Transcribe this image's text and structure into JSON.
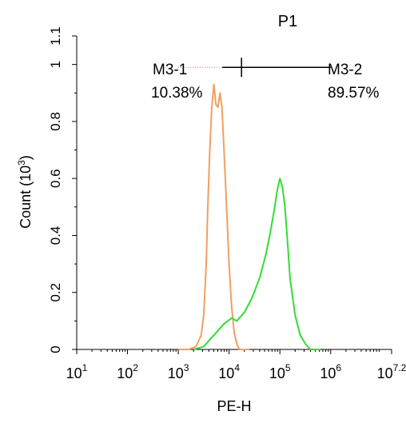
{
  "chart_data": {
    "type": "line",
    "title": "P1",
    "title_color": "#22cc22",
    "xlabel": "PE-H",
    "ylabel": "Count  (10",
    "ylabel_exp": "3",
    "ylabel_close": ")",
    "x_scale": "log",
    "xlim": [
      1,
      7.2
    ],
    "ylim": [
      0,
      1.1
    ],
    "x_ticks": [
      {
        "pos": 1,
        "base": "10",
        "exp": "1"
      },
      {
        "pos": 2,
        "base": "10",
        "exp": "2"
      },
      {
        "pos": 3,
        "base": "10",
        "exp": "3"
      },
      {
        "pos": 4,
        "base": "10",
        "exp": "4"
      },
      {
        "pos": 5,
        "base": "10",
        "exp": "5"
      },
      {
        "pos": 6,
        "base": "10",
        "exp": "6"
      },
      {
        "pos": 7.2,
        "base": "10",
        "exp": "7.2"
      }
    ],
    "y_ticks": [
      {
        "v": 0,
        "label": "0"
      },
      {
        "v": 0.2,
        "label": "0.2"
      },
      {
        "v": 0.4,
        "label": "0.4"
      },
      {
        "v": 0.6,
        "label": "0.6"
      },
      {
        "v": 0.8,
        "label": "0.8"
      },
      {
        "v": 1.0,
        "label": "1"
      },
      {
        "v": 1.1,
        "label": "1.1"
      }
    ],
    "series": [
      {
        "color": "#f0a060",
        "points": [
          [
            3.0,
            0
          ],
          [
            3.2,
            0
          ],
          [
            3.35,
            0.01
          ],
          [
            3.45,
            0.05
          ],
          [
            3.5,
            0.12
          ],
          [
            3.55,
            0.3
          ],
          [
            3.58,
            0.5
          ],
          [
            3.62,
            0.7
          ],
          [
            3.66,
            0.85
          ],
          [
            3.7,
            0.93
          ],
          [
            3.74,
            0.86
          ],
          [
            3.78,
            0.85
          ],
          [
            3.82,
            0.9
          ],
          [
            3.86,
            0.85
          ],
          [
            3.9,
            0.7
          ],
          [
            3.95,
            0.5
          ],
          [
            4.0,
            0.3
          ],
          [
            4.05,
            0.15
          ],
          [
            4.1,
            0.06
          ],
          [
            4.15,
            0.02
          ],
          [
            4.2,
            0
          ],
          [
            4.4,
            0
          ]
        ]
      },
      {
        "color": "#33dd33",
        "points": [
          [
            3.3,
            0
          ],
          [
            3.5,
            0.01
          ],
          [
            3.6,
            0.03
          ],
          [
            3.75,
            0.06
          ],
          [
            3.9,
            0.09
          ],
          [
            4.05,
            0.11
          ],
          [
            4.15,
            0.1
          ],
          [
            4.3,
            0.13
          ],
          [
            4.45,
            0.18
          ],
          [
            4.6,
            0.25
          ],
          [
            4.72,
            0.33
          ],
          [
            4.8,
            0.4
          ],
          [
            4.88,
            0.48
          ],
          [
            4.95,
            0.56
          ],
          [
            5.0,
            0.6
          ],
          [
            5.05,
            0.57
          ],
          [
            5.1,
            0.5
          ],
          [
            5.15,
            0.38
          ],
          [
            5.2,
            0.25
          ],
          [
            5.3,
            0.12
          ],
          [
            5.4,
            0.05
          ],
          [
            5.5,
            0.02
          ],
          [
            5.6,
            0
          ],
          [
            5.8,
            0
          ]
        ]
      }
    ],
    "markers": [
      {
        "name": "M3-1",
        "percent": "10.38%",
        "x_start": 3.0,
        "x_end": 4.15,
        "y": 0.99
      },
      {
        "name": "M3-2",
        "percent": "89.57%",
        "x_start": 4.15,
        "x_end": 6.0,
        "y": 0.99
      }
    ]
  }
}
